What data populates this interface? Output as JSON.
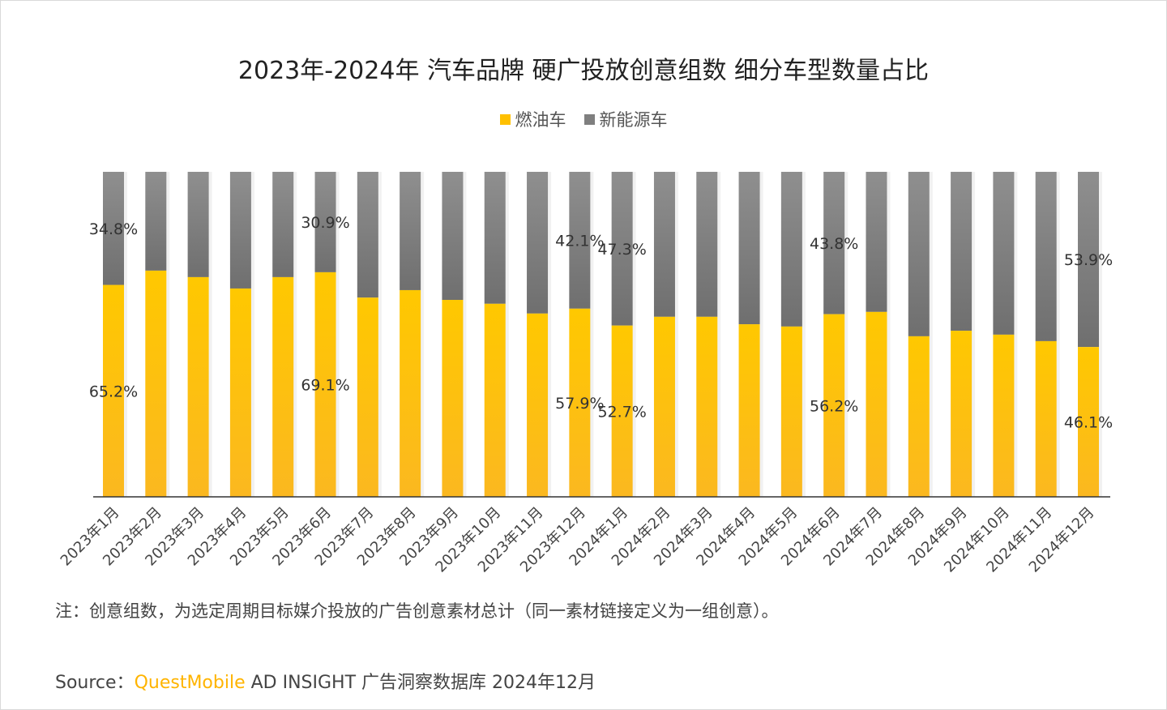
{
  "chart_data": {
    "type": "bar",
    "stacked": true,
    "title": "2023年-2024年 汽车品牌 硬广投放创意组数 细分车型数量占比",
    "categories": [
      "2023年1月",
      "2023年2月",
      "2023年3月",
      "2023年4月",
      "2023年5月",
      "2023年6月",
      "2023年7月",
      "2023年8月",
      "2023年9月",
      "2023年10月",
      "2023年11月",
      "2023年12月",
      "2024年1月",
      "2024年2月",
      "2024年3月",
      "2024年4月",
      "2024年5月",
      "2024年6月",
      "2024年7月",
      "2024年8月",
      "2024年9月",
      "2024年10月",
      "2024年11月",
      "2024年12月"
    ],
    "series": [
      {
        "name": "燃油车",
        "color": "#ffc000",
        "values": [
          65.2,
          69.6,
          67.6,
          64.1,
          67.6,
          69.1,
          61.3,
          63.6,
          60.6,
          59.4,
          56.4,
          57.9,
          52.7,
          55.4,
          55.4,
          53.1,
          52.4,
          56.2,
          56.9,
          49.4,
          51.1,
          49.9,
          47.9,
          46.1
        ]
      },
      {
        "name": "新能源车",
        "color": "#7f7f7f",
        "values": [
          34.8,
          30.4,
          32.4,
          35.9,
          32.4,
          30.9,
          38.7,
          36.4,
          39.4,
          40.6,
          43.6,
          42.1,
          47.3,
          44.6,
          44.6,
          46.9,
          47.6,
          43.8,
          43.1,
          50.6,
          48.9,
          50.1,
          52.1,
          53.9
        ]
      }
    ],
    "data_labels": [
      {
        "index": 0,
        "fuel": "65.2%",
        "nev": "34.8%"
      },
      {
        "index": 5,
        "fuel": "69.1%",
        "nev": "30.9%"
      },
      {
        "index": 11,
        "fuel": "57.9%",
        "nev": "42.1%"
      },
      {
        "index": 12,
        "fuel": "52.7%",
        "nev": "47.3%"
      },
      {
        "index": 17,
        "fuel": "56.2%",
        "nev": "43.8%"
      },
      {
        "index": 23,
        "fuel": "46.1%",
        "nev": "53.9%"
      }
    ],
    "ylim": [
      0,
      100
    ],
    "grid": false,
    "legend_position": "top"
  },
  "note": "注：创意组数，为选定周期目标媒介投放的广告创意素材总计（同一素材链接定义为一组创意）。",
  "source": {
    "label": "Source：",
    "brand": "QuestMobile",
    "rest": " AD INSIGHT 广告洞察数据库 2024年12月"
  }
}
